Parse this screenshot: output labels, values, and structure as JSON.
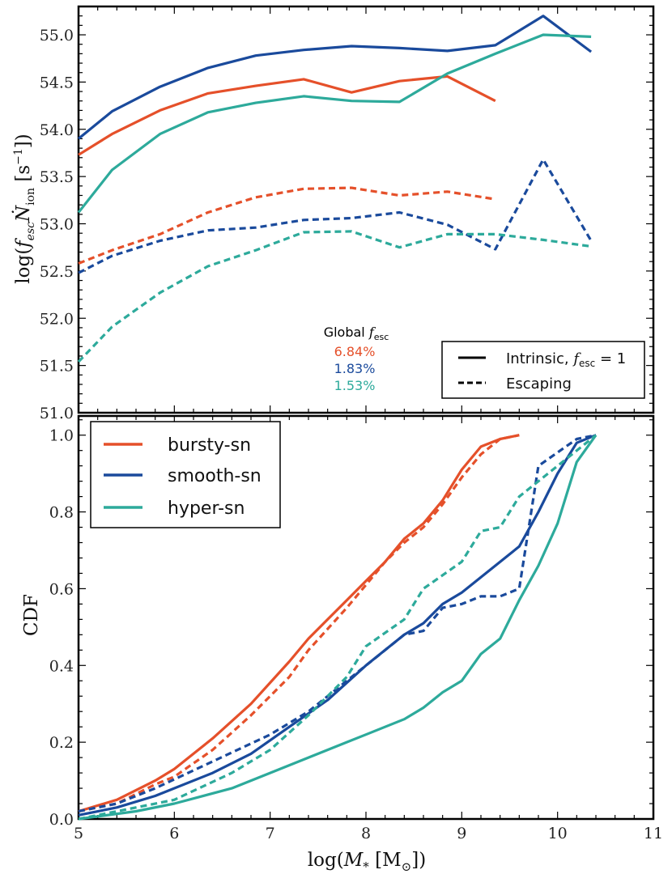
{
  "colors": {
    "bursty": "#e5502a",
    "smooth": "#1a4a9c",
    "hyper": "#2daa9b",
    "axis": "#000000"
  },
  "shared_x": {
    "label_prefix": "log(",
    "label_var": "M",
    "label_sub": "*",
    "label_unit": " [M",
    "label_unit_sub": "⊙",
    "label_suffix": "])",
    "lim": [
      5,
      11
    ],
    "ticks": [
      5,
      6,
      7,
      8,
      9,
      10,
      11
    ]
  },
  "chart_data": [
    {
      "type": "line",
      "panel": "top",
      "ylabel": "log(f_esc Ṅ_ion [s^-1])",
      "ylabel_parts": {
        "prefix": "log(",
        "f": "f",
        "f_sub": "esc",
        "n": "Ṅ",
        "n_sub": "ion",
        "unit": " [s",
        "unit_sup": "−1",
        "suffix": "])"
      },
      "xlim": [
        5,
        11
      ],
      "ylim": [
        51.0,
        55.3
      ],
      "yticks": [
        51.0,
        51.5,
        52.0,
        52.5,
        53.0,
        53.5,
        54.0,
        54.5,
        55.0
      ],
      "ytick_labels": [
        "51.0",
        "51.5",
        "52.0",
        "52.5",
        "53.0",
        "53.5",
        "54.0",
        "54.5",
        "55.0"
      ],
      "series": [
        {
          "name": "bursty-sn intrinsic",
          "model": "bursty",
          "style": "solid",
          "x": [
            5.0,
            5.35,
            5.85,
            6.35,
            6.85,
            7.35,
            7.85,
            8.35,
            8.85,
            9.35
          ],
          "values": [
            53.73,
            53.95,
            54.2,
            54.38,
            54.46,
            54.53,
            54.39,
            54.51,
            54.56,
            54.3
          ]
        },
        {
          "name": "smooth-sn intrinsic",
          "model": "smooth",
          "style": "solid",
          "x": [
            5.0,
            5.35,
            5.85,
            6.35,
            6.85,
            7.35,
            7.85,
            8.35,
            8.85,
            9.35,
            9.85,
            10.35
          ],
          "values": [
            53.9,
            54.19,
            54.45,
            54.65,
            54.78,
            54.84,
            54.88,
            54.86,
            54.83,
            54.89,
            55.2,
            54.82
          ]
        },
        {
          "name": "hyper-sn intrinsic",
          "model": "hyper",
          "style": "solid",
          "x": [
            5.0,
            5.35,
            5.85,
            6.35,
            6.85,
            7.35,
            7.85,
            8.35,
            8.85,
            9.35,
            9.85,
            10.35
          ],
          "values": [
            53.12,
            53.57,
            53.95,
            54.18,
            54.28,
            54.35,
            54.3,
            54.29,
            54.59,
            54.8,
            55.0,
            54.98
          ]
        },
        {
          "name": "bursty-sn escaping",
          "model": "bursty",
          "style": "dashed",
          "x": [
            5.0,
            5.35,
            5.85,
            6.35,
            6.85,
            7.35,
            7.85,
            8.35,
            8.85,
            9.35
          ],
          "values": [
            52.58,
            52.72,
            52.89,
            53.12,
            53.28,
            53.37,
            53.38,
            53.3,
            53.34,
            53.26
          ]
        },
        {
          "name": "smooth-sn escaping",
          "model": "smooth",
          "style": "dashed",
          "x": [
            5.0,
            5.35,
            5.85,
            6.35,
            6.85,
            7.35,
            7.85,
            8.35,
            8.85,
            9.35,
            9.85,
            10.35
          ],
          "values": [
            52.48,
            52.66,
            52.82,
            52.93,
            52.96,
            53.04,
            53.06,
            53.12,
            52.99,
            52.73,
            53.68,
            52.82
          ]
        },
        {
          "name": "hyper-sn escaping",
          "model": "hyper",
          "style": "dashed",
          "x": [
            5.0,
            5.35,
            5.85,
            6.35,
            6.85,
            7.35,
            7.85,
            8.35,
            8.85,
            9.35,
            9.85,
            10.35
          ],
          "values": [
            51.54,
            51.91,
            52.27,
            52.55,
            52.72,
            52.91,
            52.92,
            52.75,
            52.89,
            52.89,
            52.83,
            52.76
          ]
        }
      ],
      "annotation": {
        "title_prefix": "Global ",
        "title_var": "f",
        "title_sub": "esc",
        "values": [
          {
            "model": "bursty",
            "text": "6.84%"
          },
          {
            "model": "smooth",
            "text": "1.83%"
          },
          {
            "model": "hyper",
            "text": "1.53%"
          }
        ]
      },
      "legend": {
        "position": "bottom-right",
        "intrinsic_label": "Intrinsic, ",
        "intrinsic_math_var": "f",
        "intrinsic_math_sub": "esc",
        "intrinsic_math_rest": " = 1",
        "escaping_label": "Escaping"
      }
    },
    {
      "type": "line",
      "panel": "bottom",
      "ylabel": "CDF",
      "xlabel": "log(M* [M⊙])",
      "xlim": [
        5,
        11
      ],
      "ylim": [
        0.0,
        1.05
      ],
      "yticks": [
        0.0,
        0.2,
        0.4,
        0.6,
        0.8,
        1.0
      ],
      "ytick_labels": [
        "0.0",
        "0.2",
        "0.4",
        "0.6",
        "0.8",
        "1.0"
      ],
      "xtick_labels": [
        "5",
        "6",
        "7",
        "8",
        "9",
        "10",
        "11"
      ],
      "series": [
        {
          "name": "bursty-sn",
          "model": "bursty",
          "style": "solid",
          "x": [
            5.0,
            5.4,
            5.8,
            6.0,
            6.4,
            6.8,
            7.2,
            7.4,
            7.8,
            8.0,
            8.2,
            8.4,
            8.6,
            8.8,
            9.0,
            9.2,
            9.4,
            9.6
          ],
          "values": [
            0.02,
            0.05,
            0.1,
            0.13,
            0.21,
            0.3,
            0.41,
            0.47,
            0.57,
            0.62,
            0.67,
            0.73,
            0.77,
            0.83,
            0.91,
            0.97,
            0.99,
            1.0
          ]
        },
        {
          "name": "smooth-sn",
          "model": "smooth",
          "style": "solid",
          "x": [
            5.0,
            5.4,
            5.8,
            6.4,
            6.8,
            7.2,
            7.6,
            8.0,
            8.4,
            8.6,
            8.8,
            9.0,
            9.2,
            9.4,
            9.6,
            9.8,
            10.0,
            10.2,
            10.4
          ],
          "values": [
            0.01,
            0.03,
            0.06,
            0.12,
            0.17,
            0.24,
            0.31,
            0.4,
            0.48,
            0.51,
            0.56,
            0.59,
            0.63,
            0.67,
            0.71,
            0.8,
            0.9,
            0.98,
            1.0
          ]
        },
        {
          "name": "hyper-sn",
          "model": "hyper",
          "style": "solid",
          "x": [
            5.0,
            5.6,
            6.0,
            6.6,
            7.0,
            7.4,
            7.8,
            8.0,
            8.4,
            8.6,
            8.8,
            9.0,
            9.2,
            9.4,
            9.6,
            9.8,
            10.0,
            10.2,
            10.4
          ],
          "values": [
            0.0,
            0.02,
            0.04,
            0.08,
            0.12,
            0.16,
            0.2,
            0.22,
            0.26,
            0.29,
            0.33,
            0.36,
            0.43,
            0.47,
            0.57,
            0.66,
            0.77,
            0.93,
            1.0
          ]
        },
        {
          "name": "bursty-sn escaping",
          "model": "bursty",
          "style": "dashed",
          "x": [
            5.0,
            5.4,
            5.8,
            6.0,
            6.4,
            6.8,
            7.2,
            7.4,
            7.8,
            8.0,
            8.2,
            8.4,
            8.6,
            8.8,
            9.0,
            9.2,
            9.4,
            9.6
          ],
          "values": [
            0.02,
            0.04,
            0.09,
            0.11,
            0.18,
            0.27,
            0.37,
            0.44,
            0.55,
            0.61,
            0.67,
            0.72,
            0.76,
            0.82,
            0.89,
            0.95,
            0.99,
            1.0
          ]
        },
        {
          "name": "smooth-sn escaping",
          "model": "smooth",
          "style": "dashed",
          "x": [
            5.0,
            5.4,
            5.8,
            6.4,
            7.0,
            7.4,
            7.8,
            8.2,
            8.4,
            8.6,
            8.8,
            9.0,
            9.2,
            9.4,
            9.6,
            9.8,
            10.2,
            10.4
          ],
          "values": [
            0.02,
            0.04,
            0.08,
            0.15,
            0.22,
            0.28,
            0.36,
            0.44,
            0.48,
            0.49,
            0.55,
            0.56,
            0.58,
            0.58,
            0.6,
            0.92,
            0.99,
            1.0
          ]
        },
        {
          "name": "hyper-sn escaping",
          "model": "hyper",
          "style": "dashed",
          "x": [
            5.0,
            5.6,
            6.0,
            6.6,
            7.0,
            7.4,
            7.8,
            8.0,
            8.4,
            8.6,
            9.0,
            9.2,
            9.4,
            9.6,
            10.0,
            10.4
          ],
          "values": [
            0.0,
            0.03,
            0.05,
            0.12,
            0.18,
            0.27,
            0.37,
            0.45,
            0.52,
            0.6,
            0.67,
            0.75,
            0.76,
            0.84,
            0.92,
            1.0
          ]
        }
      ],
      "legend": {
        "position": "top-left",
        "entries": [
          {
            "model": "bursty",
            "label": "bursty-sn"
          },
          {
            "model": "smooth",
            "label": "smooth-sn"
          },
          {
            "model": "hyper",
            "label": "hyper-sn"
          }
        ]
      }
    }
  ]
}
